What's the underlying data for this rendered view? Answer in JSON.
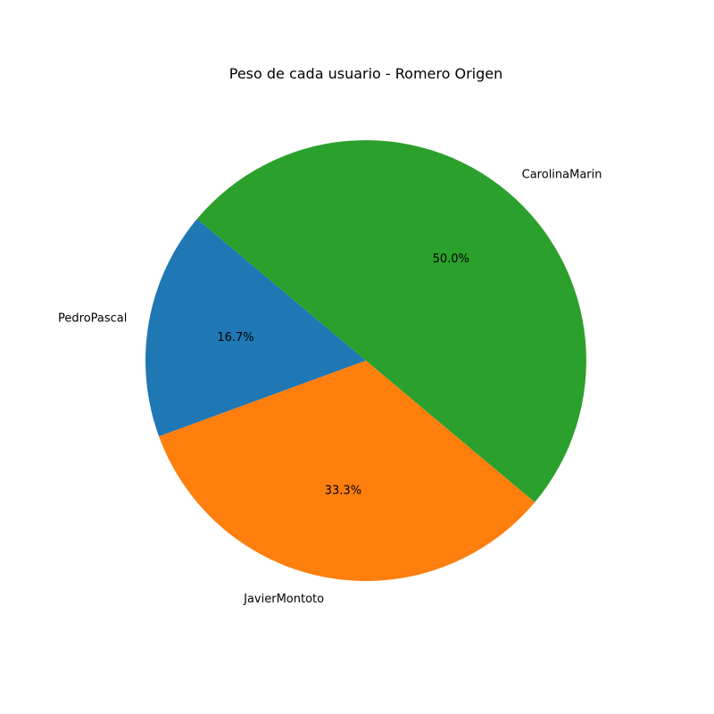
{
  "chart_data": {
    "type": "pie",
    "title": "Peso de cada usuario - Romero Origen",
    "categories": [
      "PedroPascal",
      "JavierMontoto",
      "CarolinaMarin"
    ],
    "values": [
      16.7,
      33.3,
      50.0
    ],
    "percent_labels": [
      "16.7%",
      "33.3%",
      "50.0%"
    ],
    "colors": [
      "#1f77b4",
      "#ff7f0e",
      "#2ca02c"
    ],
    "start_angle_deg": 140,
    "direction": "counterclockwise",
    "legend": "none"
  }
}
